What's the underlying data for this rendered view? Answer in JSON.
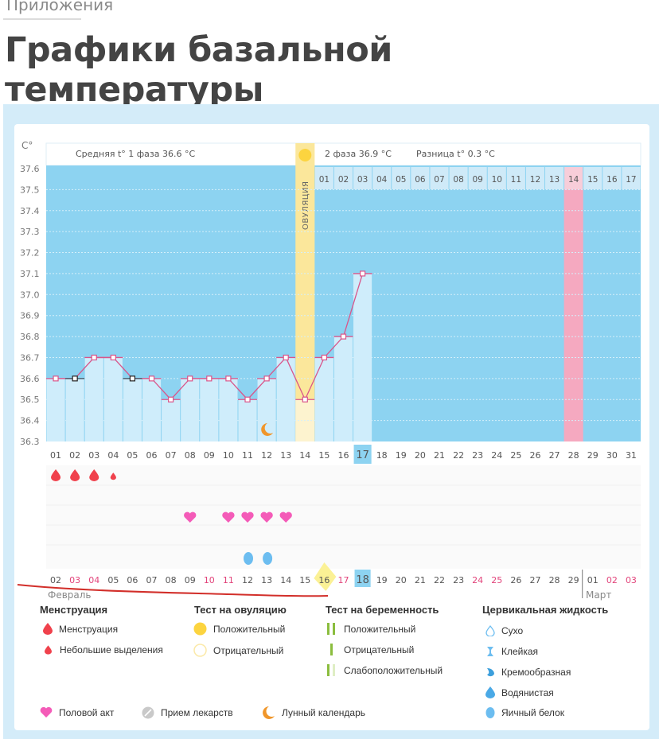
{
  "breadcrumb": "Приложения",
  "page_title": "Графики базальной температуры",
  "chart": {
    "unit_label": "C°",
    "phase1_label": "Средняя t° 1 фаза 36.6 °С",
    "phase2_label": "2 фаза 36.9 °С",
    "difference_label": "Разница t° 0.3 °С",
    "ovulation_label": "ОВУЛЯЦИЯ",
    "month_feb": "Февраль",
    "month_mar": "Март"
  },
  "chart_data": {
    "type": "line",
    "title": "Графики базальной температуры",
    "ylabel": "C°",
    "ylim": [
      36.3,
      37.6
    ],
    "yticks": [
      "37.6",
      "37.5",
      "37.4",
      "37.3",
      "37.2",
      "37.1",
      "37.0",
      "36.9",
      "36.8",
      "36.7",
      "36.6",
      "36.5",
      "36.4",
      "36.3"
    ],
    "cycle_days": [
      "01",
      "02",
      "03",
      "04",
      "05",
      "06",
      "07",
      "08",
      "09",
      "10",
      "11",
      "12",
      "13",
      "14",
      "15",
      "16",
      "17",
      "18",
      "19",
      "20",
      "21",
      "22",
      "23",
      "24",
      "25",
      "26",
      "27",
      "28",
      "29",
      "30",
      "31"
    ],
    "phase2_days": [
      "01",
      "02",
      "03",
      "04",
      "05",
      "06",
      "07",
      "08",
      "09",
      "10",
      "11",
      "12",
      "13",
      "14",
      "15",
      "16",
      "17"
    ],
    "calendar_dates": [
      "02",
      "03",
      "04",
      "05",
      "06",
      "07",
      "08",
      "09",
      "10",
      "11",
      "12",
      "13",
      "14",
      "15",
      "16",
      "17",
      "18",
      "19",
      "20",
      "21",
      "22",
      "23",
      "24",
      "25",
      "26",
      "27",
      "28",
      "29",
      "01",
      "02",
      "03"
    ],
    "calendar_weekend_indices": [
      1,
      2,
      8,
      9,
      15,
      22,
      23,
      29,
      30
    ],
    "today_cycle_day": "17",
    "today_calendar_date": "18",
    "ovulation_cycle_day": 14,
    "expected_period_cycle_day": 28,
    "series": [
      {
        "name": "Базальная температура",
        "x": [
          1,
          2,
          3,
          4,
          5,
          6,
          7,
          8,
          9,
          10,
          11,
          12,
          13,
          14,
          15,
          16,
          17
        ],
        "values": [
          36.6,
          36.6,
          36.7,
          36.7,
          36.6,
          36.6,
          36.5,
          36.6,
          36.6,
          36.6,
          36.5,
          36.6,
          36.7,
          36.5,
          36.7,
          36.8,
          37.1
        ],
        "excluded_points": [
          2,
          5
        ]
      }
    ],
    "averages": {
      "phase1": 36.6,
      "phase2": 36.9,
      "difference": 0.3
    },
    "markers": {
      "menstruation": [
        1,
        2,
        3
      ],
      "spotting": [
        4
      ],
      "intercourse": [
        8,
        10,
        11,
        12,
        13
      ],
      "cervical_egg_white": [
        11,
        12
      ],
      "lunar_calendar": [
        12
      ],
      "ovulation_test_positive": [
        14
      ]
    }
  },
  "legend": {
    "menstruation": {
      "title": "Менструация",
      "items": [
        "Менструация",
        "Небольшие выделения"
      ]
    },
    "ovulation_test": {
      "title": "Тест на овуляцию",
      "items": [
        "Положительный",
        "Отрицательный"
      ]
    },
    "pregnancy_test": {
      "title": "Тест на беременность",
      "items": [
        "Положительный",
        "Отрицательный",
        "Слабоположительный"
      ]
    },
    "cervical_fluid": {
      "title": "Цервикальная жидкость",
      "items": [
        "Сухо",
        "Клейкая",
        "Кремообразная",
        "Водянистая",
        "Яичный белок"
      ]
    },
    "other": [
      "Половой акт",
      "Прием лекарств",
      "Лунный календарь"
    ]
  },
  "colors": {
    "chart_bg": "#8dd3f1",
    "bar_fill": "#cfedfb",
    "ovulation": "#fbe79b",
    "period": "#f5a9c0",
    "line": "#d9558a",
    "weekend_text": "#e2437a",
    "today_bg": "#8dd3f1",
    "frame": "#d4ecf9",
    "menstruation": "#f0414c",
    "heart": "#f45bb8",
    "egg_white": "#6cbdf0",
    "moon": "#f0962a",
    "ovulation_sun": "#fcd43f",
    "pregnancy_green": "#8bbd3e"
  }
}
